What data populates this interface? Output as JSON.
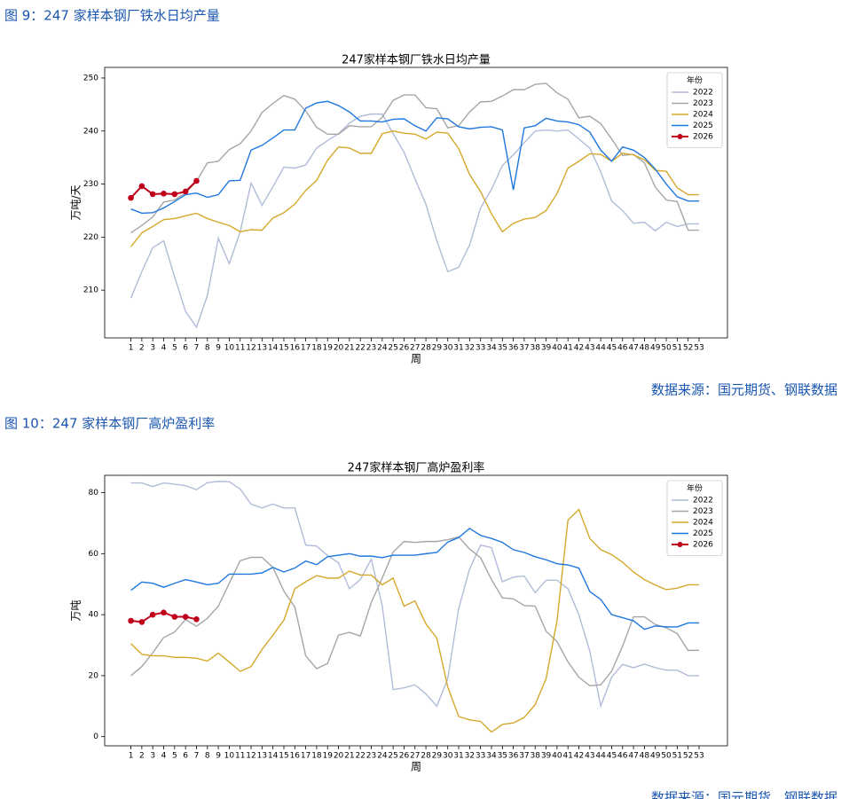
{
  "chart_data": [
    {
      "type": "line",
      "caption": "图 9：247 家样本钢厂铁水日均产量",
      "title": "247家样本钢厂铁水日均产量",
      "xlabel": "周",
      "ylabel": "万吨/天",
      "source": "数据来源：国元期货、钢联数据",
      "legend_title": "年份",
      "legend": "upper right",
      "x": [
        1,
        2,
        3,
        4,
        5,
        6,
        7,
        8,
        9,
        10,
        11,
        12,
        13,
        14,
        15,
        16,
        17,
        18,
        19,
        20,
        21,
        22,
        23,
        24,
        25,
        26,
        27,
        28,
        29,
        30,
        31,
        32,
        33,
        34,
        35,
        36,
        37,
        38,
        39,
        40,
        41,
        42,
        43,
        44,
        45,
        46,
        47,
        48,
        49,
        50,
        51,
        52,
        53
      ],
      "xlim": [
        -1.4,
        55.6
      ],
      "xticks": [
        1,
        2,
        3,
        4,
        5,
        6,
        7,
        8,
        9,
        10,
        11,
        12,
        13,
        14,
        15,
        16,
        17,
        18,
        19,
        20,
        21,
        22,
        23,
        24,
        25,
        26,
        27,
        28,
        29,
        30,
        31,
        32,
        33,
        34,
        35,
        36,
        37,
        38,
        39,
        40,
        41,
        42,
        43,
        44,
        45,
        46,
        47,
        48,
        49,
        50,
        51,
        52,
        53
      ],
      "ylim": [
        201,
        252
      ],
      "yticks": [
        210,
        220,
        230,
        240,
        250
      ],
      "series": [
        {
          "name": "2022",
          "color": "#b0bcd8",
          "values": [
            208.5,
            213.5,
            218,
            219.3,
            212.5,
            206,
            203,
            209,
            219.8,
            215,
            221,
            230.2,
            226,
            229.5,
            233.2,
            233,
            233.6,
            236.8,
            238.2,
            239.5,
            241.5,
            242.8,
            243.2,
            243.2,
            239.5,
            236,
            231,
            226.2,
            219.3,
            213.5,
            214.3,
            218.5,
            225.5,
            229,
            233.5,
            235.5,
            237.8,
            240,
            240.2,
            240,
            240.2,
            238.5,
            236.8,
            232.3,
            226.8,
            225,
            222.6,
            222.8,
            221.2,
            222.8,
            222,
            222.5,
            222.5
          ]
        },
        {
          "name": "2023",
          "color": "#a6a6a6",
          "values": [
            220.8,
            222.2,
            223.8,
            226.6,
            227,
            228.3,
            230.5,
            234,
            234.3,
            236.5,
            237.6,
            240,
            243.5,
            245.2,
            246.7,
            246,
            243.8,
            240.7,
            239.4,
            239.4,
            241,
            240.8,
            240.8,
            242.6,
            245.8,
            246.8,
            246.8,
            244.4,
            244.2,
            240.6,
            241,
            243.6,
            245.5,
            245.6,
            246.6,
            247.8,
            247.8,
            248.8,
            249,
            247.2,
            246,
            242.5,
            242.8,
            241.4,
            238.5,
            235.4,
            235.6,
            234,
            229.4,
            227,
            226.7,
            221.3,
            221.3
          ]
        },
        {
          "name": "2024",
          "color": "#d4a82a",
          "values": [
            218.2,
            220.8,
            222,
            223.3,
            223.5,
            224,
            224.5,
            223.5,
            222.8,
            222.2,
            221,
            221.4,
            221.3,
            223.6,
            224.6,
            226.2,
            228.8,
            230.7,
            234.5,
            237,
            236.8,
            235.8,
            235.8,
            239.5,
            240,
            239.6,
            239.4,
            238.5,
            239.8,
            239.6,
            236.7,
            231.8,
            228.6,
            224.4,
            221,
            222.6,
            223.4,
            223.7,
            225,
            228.2,
            233,
            234.3,
            235.7,
            235.6,
            234.3,
            235.8,
            235.5,
            234.6,
            232.6,
            232.4,
            229.3,
            228,
            228
          ]
        },
        {
          "name": "2025",
          "color": "#1f77e0",
          "values": [
            225.3,
            224.5,
            224.6,
            225.5,
            226.7,
            228,
            228.3,
            227.5,
            228,
            230.6,
            230.7,
            236.4,
            237.3,
            238.7,
            240.2,
            240.2,
            244.3,
            245.3,
            245.6,
            244.8,
            243.6,
            241.9,
            241.9,
            241.7,
            242.2,
            242.3,
            241,
            240,
            242.5,
            242.3,
            240.8,
            240.4,
            240.7,
            240.8,
            240.2,
            228.9,
            240.6,
            241,
            242.4,
            241.9,
            241.7,
            241.2,
            239.8,
            236.4,
            234.3,
            237,
            236.4,
            235,
            232.8,
            230,
            227.6,
            226.8,
            226.8
          ]
        },
        {
          "name": "2026",
          "color": "#c0001a",
          "marker": "o",
          "values": [
            227.4,
            229.6,
            228.1,
            228.2,
            228.1,
            228.6,
            230.6,
            null,
            null,
            null,
            null,
            null,
            null,
            null,
            null,
            null,
            null,
            null,
            null,
            null,
            null,
            null,
            null,
            null,
            null,
            null,
            null,
            null,
            null,
            null,
            null,
            null,
            null,
            null,
            null,
            null,
            null,
            null,
            null,
            null,
            null,
            null,
            null,
            null,
            null,
            null,
            null,
            null,
            null,
            null,
            null,
            null,
            null
          ]
        }
      ]
    },
    {
      "type": "line",
      "caption": "图 10：247 家样本钢厂高炉盈利率",
      "title": "247家样本钢厂高炉盈利率",
      "xlabel": "周",
      "ylabel": "万吨",
      "source": "数据来源：国元期货、钢联数据",
      "legend_title": "年份",
      "legend": "upper right",
      "x": [
        1,
        2,
        3,
        4,
        5,
        6,
        7,
        8,
        9,
        10,
        11,
        12,
        13,
        14,
        15,
        16,
        17,
        18,
        19,
        20,
        21,
        22,
        23,
        24,
        25,
        26,
        27,
        28,
        29,
        30,
        31,
        32,
        33,
        34,
        35,
        36,
        37,
        38,
        39,
        40,
        41,
        42,
        43,
        44,
        45,
        46,
        47,
        48,
        49,
        50,
        51,
        52,
        53
      ],
      "xlim": [
        -1.4,
        55.6
      ],
      "xticks": [
        1,
        2,
        3,
        4,
        5,
        6,
        7,
        8,
        9,
        10,
        11,
        12,
        13,
        14,
        15,
        16,
        17,
        18,
        19,
        20,
        21,
        22,
        23,
        24,
        25,
        26,
        27,
        28,
        29,
        30,
        31,
        32,
        33,
        34,
        35,
        36,
        37,
        38,
        39,
        40,
        41,
        42,
        43,
        44,
        45,
        46,
        47,
        48,
        49,
        50,
        51,
        52,
        53
      ],
      "ylim": [
        -3,
        85.7
      ],
      "yticks": [
        0,
        20,
        40,
        60,
        80
      ],
      "series": [
        {
          "name": "2022",
          "color": "#b0bcd8",
          "values": [
            83.2,
            83.2,
            82,
            83.2,
            82.8,
            82.3,
            81,
            83.3,
            83.7,
            83.6,
            81.2,
            76.2,
            75,
            76.3,
            75,
            75,
            62.8,
            62.5,
            59.4,
            57,
            48.5,
            51.5,
            58.2,
            43,
            15.4,
            16,
            17,
            14,
            10,
            19,
            42,
            55,
            62.8,
            62,
            50.8,
            52.3,
            52.7,
            47.2,
            51.3,
            51.3,
            48.5,
            40,
            28,
            10,
            19.5,
            23.7,
            22.6,
            23.8,
            22.6,
            21.8,
            21.8,
            20,
            20
          ]
        },
        {
          "name": "2023",
          "color": "#a6a6a6",
          "values": [
            20,
            23,
            27.5,
            32.5,
            34.3,
            38.4,
            36.2,
            38.8,
            42.8,
            50.3,
            57.7,
            58.8,
            58.8,
            55.5,
            47.7,
            42.5,
            26.5,
            22.3,
            24,
            33.3,
            34.2,
            33,
            44,
            52,
            60.5,
            64,
            63.7,
            64,
            64,
            64.6,
            65.5,
            61.5,
            58.7,
            51.5,
            45.5,
            45.2,
            43,
            42.8,
            34.6,
            31.2,
            24.5,
            19.5,
            16.7,
            17,
            21.5,
            29.6,
            39.3,
            39.3,
            36.8,
            35.7,
            33.8,
            28.3,
            28.3
          ]
        },
        {
          "name": "2024",
          "color": "#d4a82a",
          "values": [
            30.5,
            27,
            26.5,
            26.5,
            26,
            26,
            25.7,
            24.8,
            27.4,
            24.5,
            21.4,
            23,
            28.6,
            33.3,
            38.2,
            48.5,
            50.8,
            52.8,
            52,
            52,
            54.3,
            53,
            53,
            49.8,
            52,
            42.8,
            44.5,
            37,
            32.3,
            16.3,
            6.6,
            5.5,
            5,
            1.5,
            4,
            4.5,
            6.3,
            10.5,
            19,
            38,
            71,
            74.5,
            65,
            61.3,
            59.7,
            57.2,
            54,
            51.5,
            49.7,
            48.2,
            48.7,
            49.8,
            49.8
          ]
        },
        {
          "name": "2025",
          "color": "#1f77e0",
          "values": [
            48,
            50.7,
            50.3,
            49,
            50.3,
            51.5,
            50.7,
            49.8,
            50.3,
            53.3,
            53.3,
            53.3,
            53.7,
            55.5,
            54,
            55.3,
            57.6,
            56.4,
            59,
            59.5,
            60,
            59.2,
            59.2,
            58.7,
            59.5,
            59.5,
            59.5,
            60,
            60.4,
            63.8,
            65.3,
            68.3,
            66,
            65,
            63.7,
            61.3,
            60.4,
            59,
            58,
            56.7,
            56.3,
            55.3,
            47.6,
            45,
            40,
            39,
            38,
            35.2,
            36.3,
            36,
            36,
            37.3,
            37.3
          ]
        },
        {
          "name": "2026",
          "color": "#c0001a",
          "marker": "o",
          "values": [
            38,
            37.6,
            40,
            40.7,
            39.3,
            39.3,
            38.5,
            null,
            null,
            null,
            null,
            null,
            null,
            null,
            null,
            null,
            null,
            null,
            null,
            null,
            null,
            null,
            null,
            null,
            null,
            null,
            null,
            null,
            null,
            null,
            null,
            null,
            null,
            null,
            null,
            null,
            null,
            null,
            null,
            null,
            null,
            null,
            null,
            null,
            null,
            null,
            null,
            null,
            null,
            null,
            null,
            null,
            null
          ]
        }
      ]
    }
  ]
}
